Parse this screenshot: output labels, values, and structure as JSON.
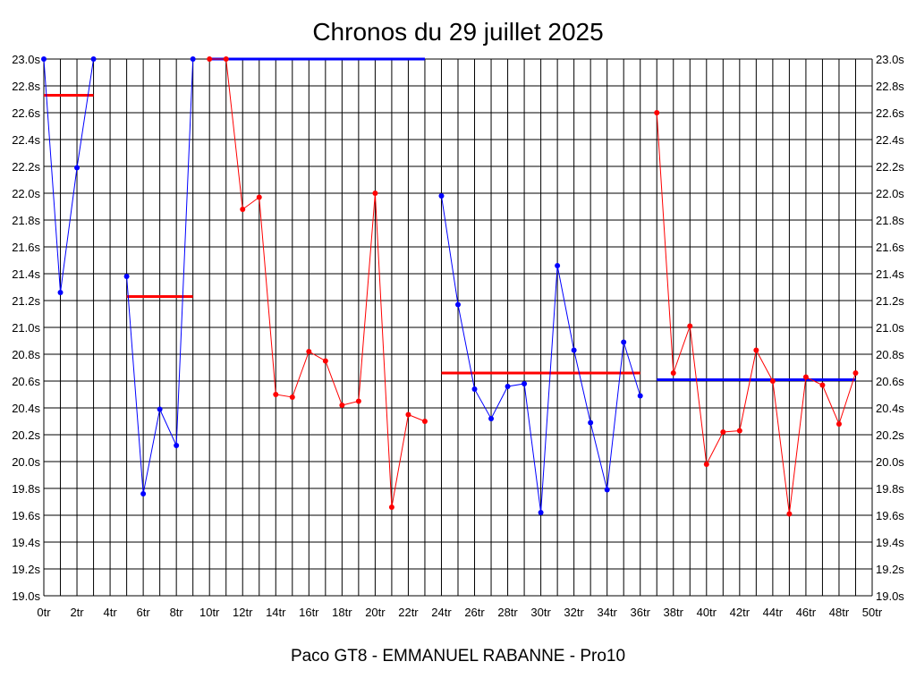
{
  "chart_data": {
    "type": "line",
    "title": "Chronos du 29 juillet 2025",
    "subtitle": "Paco GT8 - EMMANUEL RABANNE - Pro10",
    "xlabel": "",
    "ylabel": "",
    "xlim": [
      0,
      50
    ],
    "ylim": [
      19.0,
      23.0
    ],
    "grid": true,
    "x_ticks": [
      0,
      2,
      4,
      6,
      8,
      10,
      12,
      14,
      16,
      18,
      20,
      22,
      24,
      26,
      28,
      30,
      32,
      34,
      36,
      38,
      40,
      42,
      44,
      46,
      48,
      50
    ],
    "x_tick_labels": [
      "0tr",
      "2tr",
      "4tr",
      "6tr",
      "8tr",
      "10tr",
      "12tr",
      "14tr",
      "16tr",
      "18tr",
      "20tr",
      "22tr",
      "24tr",
      "26tr",
      "28tr",
      "30tr",
      "32tr",
      "34tr",
      "36tr",
      "38tr",
      "40tr",
      "42tr",
      "44tr",
      "46tr",
      "48tr",
      "50tr"
    ],
    "y_ticks": [
      19.0,
      19.2,
      19.4,
      19.6,
      19.8,
      20.0,
      20.2,
      20.4,
      20.6,
      20.8,
      21.0,
      21.2,
      21.4,
      21.6,
      21.8,
      22.0,
      22.2,
      22.4,
      22.6,
      22.8,
      23.0
    ],
    "y_tick_labels": [
      "19.0s",
      "19.2s",
      "19.4s",
      "19.6s",
      "19.8s",
      "20.0s",
      "20.2s",
      "20.4s",
      "20.6s",
      "20.8s",
      "21.0s",
      "21.2s",
      "21.4s",
      "21.6s",
      "21.8s",
      "22.0s",
      "22.2s",
      "22.4s",
      "22.6s",
      "22.8s",
      "23.0s"
    ],
    "series": [
      {
        "color": "#0000ff",
        "x": [
          0,
          1,
          2,
          3
        ],
        "values": [
          23.0,
          21.26,
          22.19,
          23.0
        ]
      },
      {
        "color": "#0000ff",
        "x": [
          5,
          6,
          7,
          8,
          9
        ],
        "values": [
          21.38,
          19.76,
          20.39,
          20.12,
          23.0
        ]
      },
      {
        "color": "#ff0000",
        "x": [
          10,
          11,
          12,
          13,
          14,
          15,
          16,
          17,
          18,
          19,
          20,
          21,
          22,
          23
        ],
        "values": [
          23.0,
          23.0,
          21.88,
          21.97,
          20.5,
          20.48,
          20.82,
          20.75,
          20.42,
          20.45,
          22.0,
          19.66,
          20.35,
          20.3
        ]
      },
      {
        "color": "#0000ff",
        "x": [
          24,
          25,
          26,
          27,
          28,
          29,
          30,
          31,
          32,
          33,
          34,
          35,
          36
        ],
        "values": [
          21.98,
          21.17,
          20.54,
          20.32,
          20.56,
          20.58,
          19.62,
          21.46,
          20.83,
          20.29,
          19.79,
          20.89,
          20.49
        ]
      },
      {
        "color": "#ff0000",
        "x": [
          37,
          38,
          39,
          40,
          41,
          42,
          43,
          44,
          45,
          46,
          47,
          48,
          49
        ],
        "values": [
          22.6,
          20.66,
          21.01,
          19.98,
          20.22,
          20.23,
          20.83,
          20.6,
          19.61,
          20.63,
          20.57,
          20.28,
          20.66
        ]
      }
    ],
    "averages": [
      {
        "color": "#ff0000",
        "x": [
          0,
          3
        ],
        "value": 22.73
      },
      {
        "color": "#ff0000",
        "x": [
          5,
          9
        ],
        "value": 21.23
      },
      {
        "color": "#0000ff",
        "x": [
          10,
          23
        ],
        "value": 23.0
      },
      {
        "color": "#ff0000",
        "x": [
          24,
          36
        ],
        "value": 20.66
      },
      {
        "color": "#0000ff",
        "x": [
          37,
          49
        ],
        "value": 20.61
      }
    ]
  }
}
